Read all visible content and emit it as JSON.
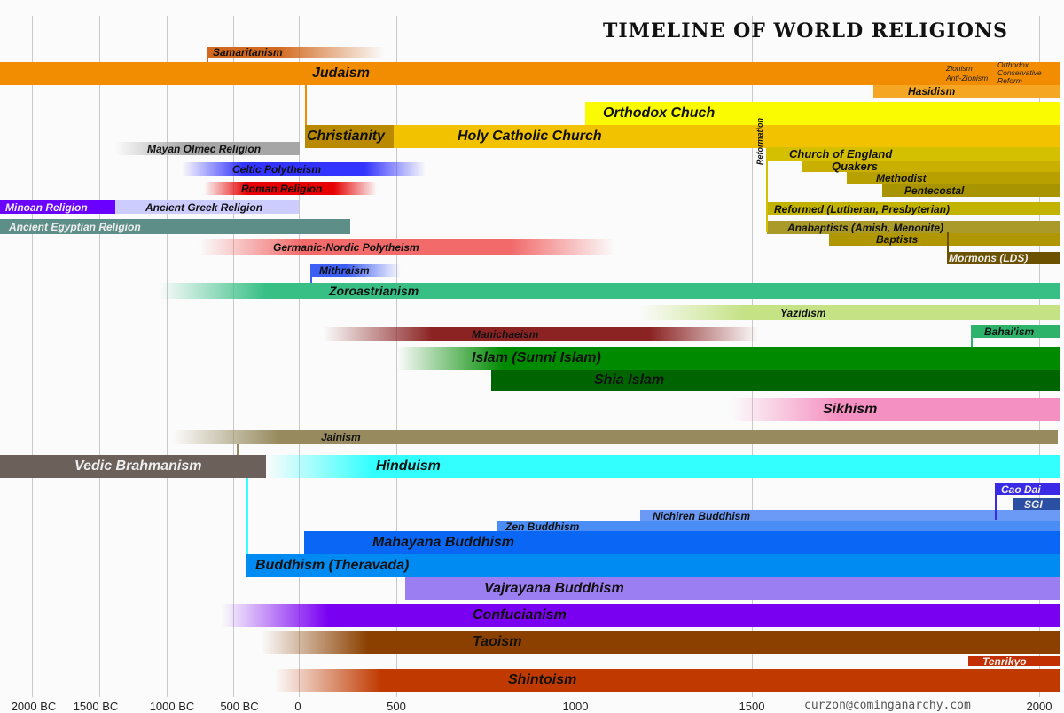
{
  "title": "TIMELINE OF WORLD RELIGIONS",
  "credit": "curzon@cominganarchy.com",
  "reformation_label": "Reformation",
  "judaism_notes": [
    "Zionism",
    "Anti-Zionism",
    "Orthodox",
    "Conservative",
    "Reform"
  ],
  "axis": [
    "2000 BC",
    "1500 BC",
    "1000 BC",
    "500 BC",
    "0",
    "500",
    "1000",
    "1500",
    "2000"
  ],
  "religions": [
    {
      "label": "Samaritanism",
      "color": "#d2691e",
      "start": -722,
      "end": "present",
      "fade": "end"
    },
    {
      "label": "Judaism",
      "color": "#f28c00",
      "start": "before 2000 BC",
      "end": "present"
    },
    {
      "label": "Hasidism",
      "color": "#f5a623",
      "start": 1735,
      "end": "present"
    },
    {
      "label": "Orthodox Chuch",
      "color": "#fafa00",
      "start": 1054,
      "end": "present"
    },
    {
      "label": "Christianity",
      "color": "#b98a00",
      "start": 30,
      "end": "present"
    },
    {
      "label": "Holy Catholic Church",
      "color": "#f2c200",
      "start": 500,
      "end": "present"
    },
    {
      "label": "Mayan Olmec Religion",
      "color": "#a6a6a6",
      "start": -1200,
      "end": 0,
      "fade": "start"
    },
    {
      "label": "Celtic Polytheism",
      "color": "#3333ff",
      "start": -900,
      "end": 600,
      "fade": "both"
    },
    {
      "label": "Roman Religion",
      "color": "#e60000",
      "start": -700,
      "end": 400,
      "fade": "both"
    },
    {
      "label": "Minoan Religion",
      "color": "#6a00ff",
      "start": "before 2000 BC",
      "end": -1450
    },
    {
      "label": "Ancient Greek Religion",
      "color": "#ccccff",
      "start": -1200,
      "end": 400
    },
    {
      "label": "Ancient Egyptian Religion",
      "color": "#5e8e88",
      "start": "before 2000 BC",
      "end": 400
    },
    {
      "label": "Germanic-Nordic Polytheism",
      "color": "#f26a6a",
      "start": -750,
      "end": 1100,
      "fade": "both"
    },
    {
      "label": "Mithraism",
      "color": "#3d5ef2",
      "start": 50,
      "end": 500,
      "fade": "end"
    },
    {
      "label": "Zoroastrianism",
      "color": "#37bf86",
      "start": -1000,
      "end": "present",
      "fade": "start"
    },
    {
      "label": "Yazidism",
      "color": "#c5e285",
      "start": 1200,
      "end": "present",
      "fade": "start"
    },
    {
      "label": "Manichaeism",
      "color": "#8b2323",
      "start": 240,
      "end": 1520,
      "fade": "both"
    },
    {
      "label": "Bahai'ism",
      "color": "#2db36a",
      "start": 1863,
      "end": "present"
    },
    {
      "label": "Islam (Sunni Islam)",
      "color": "#008a00",
      "start": 622,
      "end": "present",
      "fade": "start"
    },
    {
      "label": "Shia Islam",
      "color": "#006400",
      "start": 750,
      "end": "present"
    },
    {
      "label": "Sikhism",
      "color": "#f591c2",
      "start": 1500,
      "end": "present",
      "fade": "start"
    },
    {
      "label": "Jainism",
      "color": "#968a5e",
      "start": -900,
      "end": "present",
      "fade": "start"
    },
    {
      "label": "Vedic Brahmanism",
      "color": "#6b605a",
      "start": "before 2000 BC",
      "end": -200
    },
    {
      "label": "Hinduism",
      "color": "#33ffff",
      "start": -400,
      "end": "present",
      "fade": "start"
    },
    {
      "label": "Cao Dai",
      "color": "#3a2ae6",
      "start": 1926,
      "end": "present"
    },
    {
      "label": "SGI",
      "color": "#2a4fa3",
      "start": 1930,
      "end": "present"
    },
    {
      "label": "Nichiren Buddhism",
      "color": "#6a9af5",
      "start": 1253,
      "end": "present"
    },
    {
      "label": "Zen Buddhism",
      "color": "#4a8df5",
      "start": 520,
      "end": "present"
    },
    {
      "label": "Mahayana Buddhism",
      "color": "#0a66f5",
      "start": 0,
      "end": "present"
    },
    {
      "label": "Buddhism (Theravada)",
      "color": "#008bf2",
      "start": -450,
      "end": "present"
    },
    {
      "label": "Vajrayana Buddhism",
      "color": "#9b7ff2",
      "start": 500,
      "end": "present"
    },
    {
      "label": "Confucianism",
      "color": "#7a00f2",
      "start": -500,
      "end": "present",
      "fade": "start"
    },
    {
      "label": "Taoism",
      "color": "#8b4000",
      "start": -400,
      "end": "present",
      "fade": "start"
    },
    {
      "label": "Tenrikyo",
      "color": "#c22f00",
      "start": 1838,
      "end": "present"
    },
    {
      "label": "Shintoism",
      "color": "#c03a00",
      "start": -300,
      "end": "present",
      "fade": "start"
    },
    {
      "label": "Church of England",
      "color": "#d4c000",
      "start": 1534,
      "end": "present"
    },
    {
      "label": "Quakers",
      "color": "#c9b000",
      "start": 1650,
      "end": "present"
    },
    {
      "label": "Methodist",
      "color": "#b8a000",
      "start": 1739,
      "end": "present"
    },
    {
      "label": "Pentecostal",
      "color": "#a89400",
      "start": 1900,
      "end": "present"
    },
    {
      "label": "Reformed (Lutheran, Presbyterian)",
      "color": "#c2b300",
      "start": 1517,
      "end": "present"
    },
    {
      "label": "Anabaptists (Amish, Menonite)",
      "color": "#aa9a2a",
      "start": 1525,
      "end": "present"
    },
    {
      "label": "Baptists",
      "color": "#b09600",
      "start": 1609,
      "end": "present"
    },
    {
      "label": "Mormons (LDS)",
      "color": "#6b5100",
      "start": 1830,
      "end": "present"
    }
  ]
}
